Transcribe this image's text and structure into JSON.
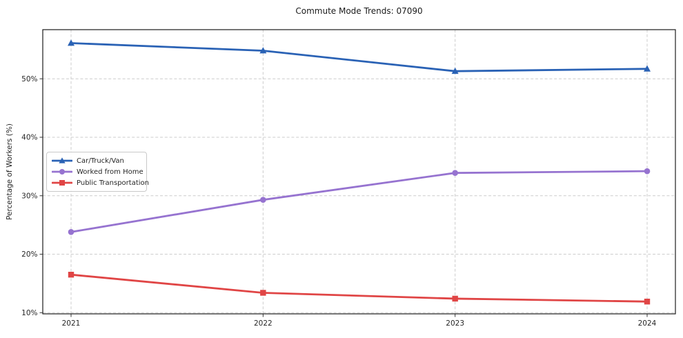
{
  "title": "Commute Mode Trends: 07090",
  "chart_data": {
    "type": "line",
    "title": "Commute Mode Trends: 07090",
    "xlabel": "",
    "ylabel": "Percentage of Workers (%)",
    "x": [
      2021,
      2022,
      2023,
      2024
    ],
    "xtick_labels": [
      "2021",
      "2022",
      "2023",
      "2024"
    ],
    "yticks": [
      10,
      20,
      30,
      40,
      50
    ],
    "ytick_labels": [
      "10%",
      "20%",
      "30%",
      "40%",
      "50%"
    ],
    "ylim": [
      9.8,
      58.4
    ],
    "grid": true,
    "grid_style": "dashed",
    "grid_color": "#cccccc",
    "legend_position": "center-left",
    "series": [
      {
        "name": "Car/Truck/Van",
        "marker": "triangle",
        "color": "#2a62b5",
        "values": [
          56.1,
          54.8,
          51.3,
          51.7
        ]
      },
      {
        "name": "Worked from Home",
        "marker": "circle",
        "color": "#9673d0",
        "values": [
          23.8,
          29.3,
          33.9,
          34.2
        ]
      },
      {
        "name": "Public Transportation",
        "marker": "square",
        "color": "#e04545",
        "values": [
          16.5,
          13.4,
          12.4,
          11.9
        ]
      }
    ]
  }
}
